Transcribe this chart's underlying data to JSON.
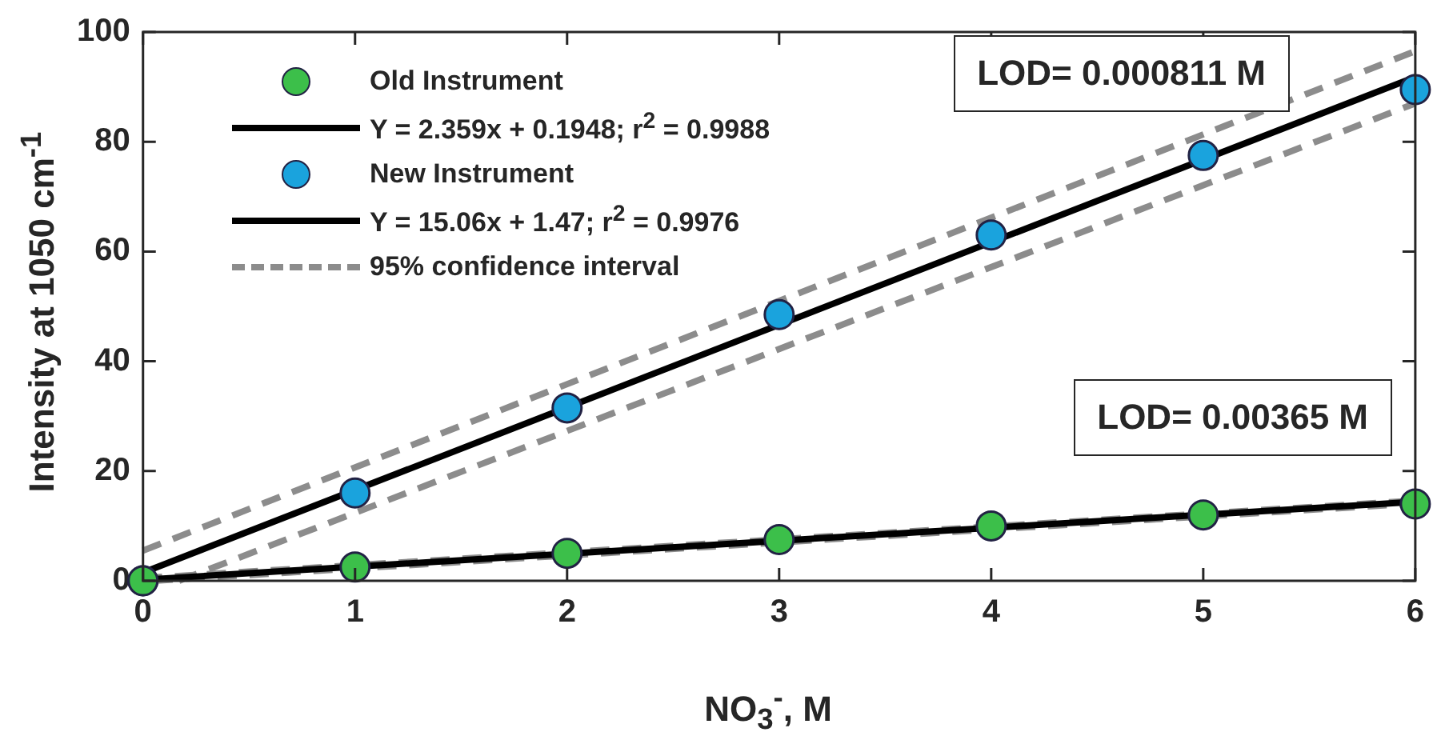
{
  "chart_data": {
    "type": "scatter",
    "xlabel": "NO$_{3}$$^{-}$, M",
    "ylabel": "Intensity at 1050 cm$^{-1}$",
    "xlim": [
      0,
      6
    ],
    "xticks": [
      0,
      1,
      2,
      3,
      4,
      5,
      6
    ],
    "ylim": [
      0,
      100
    ],
    "yticks": [
      0,
      20,
      40,
      60,
      80,
      100
    ],
    "grid": false,
    "legend": "top left",
    "annotations": [
      "LOD= 0.000811 M",
      "LOD= 0.00365 M"
    ],
    "series": [
      {
        "name": "Old Instrument",
        "type": "scatter",
        "marker": "circle",
        "color": "#3cbf4a",
        "x": [
          0,
          1,
          2,
          3,
          4,
          5,
          6
        ],
        "values": [
          0,
          2.5,
          5,
          7.5,
          10,
          12,
          14
        ]
      },
      {
        "name": "Y = 2.359x + 0.1948;  r$^{2}$ = 0.9988",
        "type": "line",
        "marker": "none",
        "line_style": "solid",
        "color": "#000000",
        "x": [
          0,
          6
        ],
        "values": [
          0.2,
          14.4
        ]
      },
      {
        "name": "New Instrument",
        "type": "scatter",
        "marker": "circle",
        "color": "#1aa3dd",
        "x": [
          0,
          1,
          2,
          3,
          4,
          5,
          6
        ],
        "values": [
          0,
          16,
          31.5,
          48.5,
          63,
          77.5,
          89.5
        ]
      },
      {
        "name": "Y = 15.06x + 1.47;  r$^{2}$ = 0.9976",
        "type": "line",
        "marker": "none",
        "line_style": "solid",
        "color": "#000000",
        "x": [
          0,
          6
        ],
        "values": [
          1.5,
          91.8
        ]
      },
      {
        "name": "95% confidence interval",
        "type": "line",
        "marker": "none",
        "line_style": "dashed",
        "color": "#8c8c8c",
        "x": [
          0,
          6
        ],
        "values": [
          5.5,
          96.5
        ]
      },
      {
        "type": "line",
        "marker": "none",
        "line_style": "dashed",
        "color": "#8c8c8c",
        "x": [
          0.17,
          6
        ],
        "values": [
          0,
          87
        ]
      },
      {
        "type": "line",
        "marker": "none",
        "line_style": "dashed",
        "color": "#8c8c8c",
        "x": [
          0,
          6
        ],
        "values": [
          0.5,
          14.6
        ]
      },
      {
        "type": "line",
        "marker": "none",
        "line_style": "dashed",
        "color": "#8c8c8c",
        "x": [
          0.05,
          6
        ],
        "values": [
          0,
          14.1
        ]
      }
    ]
  }
}
